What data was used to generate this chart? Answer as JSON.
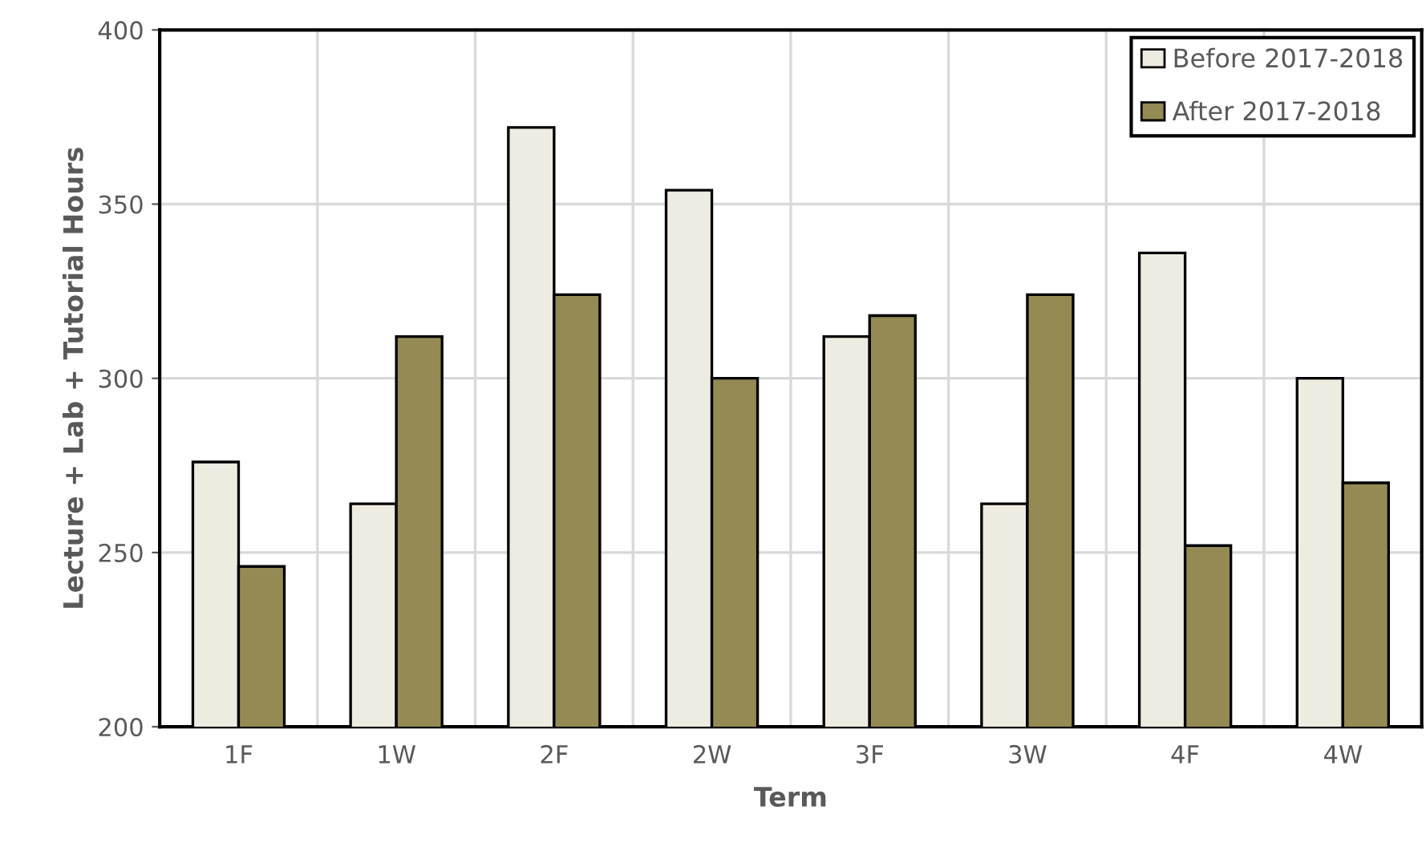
{
  "chart_data": {
    "type": "bar",
    "xlabel": "Term",
    "ylabel": "Lecture + Lab + Tutorial Hours",
    "categories": [
      "1F",
      "1W",
      "2F",
      "2W",
      "3F",
      "3W",
      "4F",
      "4W"
    ],
    "series": [
      {
        "name": "Before 2017-2018",
        "color": "#eeebe0",
        "values": [
          276,
          264,
          372,
          354,
          312,
          264,
          336,
          300
        ]
      },
      {
        "name": "After 2017-2018",
        "color": "#948a54",
        "values": [
          246,
          312,
          324,
          300,
          318,
          324,
          252,
          270
        ]
      }
    ],
    "ylim": [
      200,
      400
    ],
    "yticks": [
      200,
      250,
      300,
      350,
      400
    ],
    "grid": true,
    "legend": "top right"
  }
}
